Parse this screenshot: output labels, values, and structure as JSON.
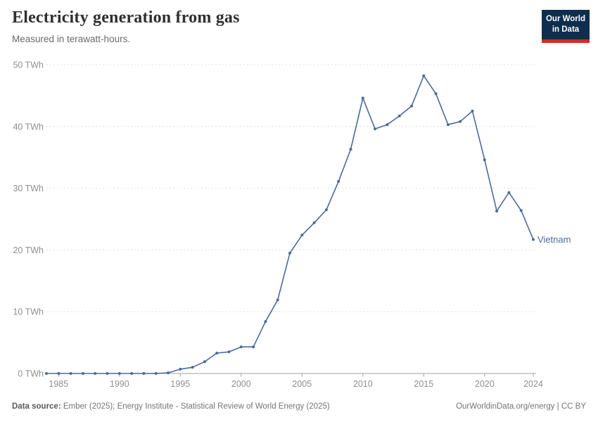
{
  "header": {
    "title": "Electricity generation from gas",
    "subtitle": "Measured in terawatt-hours.",
    "logo": {
      "line1": "Our World",
      "line2": "in Data"
    }
  },
  "chart_data": {
    "type": "line",
    "title": "Electricity generation from gas",
    "unit": "TWh",
    "x": [
      1984,
      1985,
      1986,
      1987,
      1988,
      1989,
      1990,
      1991,
      1992,
      1993,
      1994,
      1995,
      1996,
      1997,
      1998,
      1999,
      2000,
      2001,
      2002,
      2003,
      2004,
      2005,
      2006,
      2007,
      2008,
      2009,
      2010,
      2011,
      2012,
      2013,
      2014,
      2015,
      2016,
      2017,
      2018,
      2019,
      2020,
      2021,
      2022,
      2023,
      2024
    ],
    "series": [
      {
        "name": "Vietnam",
        "color": "#4c6a9c",
        "values": [
          0,
          0,
          0,
          0,
          0,
          0,
          0,
          0,
          0,
          0,
          0.1,
          0.7,
          1.0,
          1.9,
          3.3,
          3.5,
          4.3,
          4.3,
          8.4,
          11.9,
          19.5,
          22.4,
          24.4,
          26.5,
          31.1,
          36.3,
          44.6,
          39.6,
          40.3,
          41.7,
          43.3,
          48.2,
          45.3,
          40.3,
          40.8,
          42.5,
          34.6,
          26.3,
          29.3,
          26.4,
          21.7
        ]
      }
    ],
    "xlim": [
      1984,
      2024
    ],
    "ylim": [
      0,
      50
    ],
    "xticks": [
      1985,
      1990,
      1995,
      2000,
      2005,
      2010,
      2015,
      2020,
      2024
    ],
    "xtick_labels": [
      "1985",
      "1990",
      "1995",
      "2000",
      "2005",
      "2010",
      "2015",
      "2020",
      "2024"
    ],
    "yticks": [
      0,
      10,
      20,
      30,
      40,
      50
    ],
    "ytick_labels": [
      "0 TWh",
      "10 TWh",
      "20 TWh",
      "30 TWh",
      "40 TWh",
      "50 TWh"
    ],
    "grid": "horizontal-dashed",
    "legend_position": "end-of-line-label",
    "colors": {
      "gridline": "#e0e0e0",
      "axis": "#a0a0a0",
      "tick_text": "#8f8f8f"
    }
  },
  "footer": {
    "source_label": "Data source:",
    "source_text": " Ember (2025); Energy Institute - Statistical Review of World Energy (2025)",
    "right_text": "OurWorldinData.org/energy | CC BY"
  }
}
